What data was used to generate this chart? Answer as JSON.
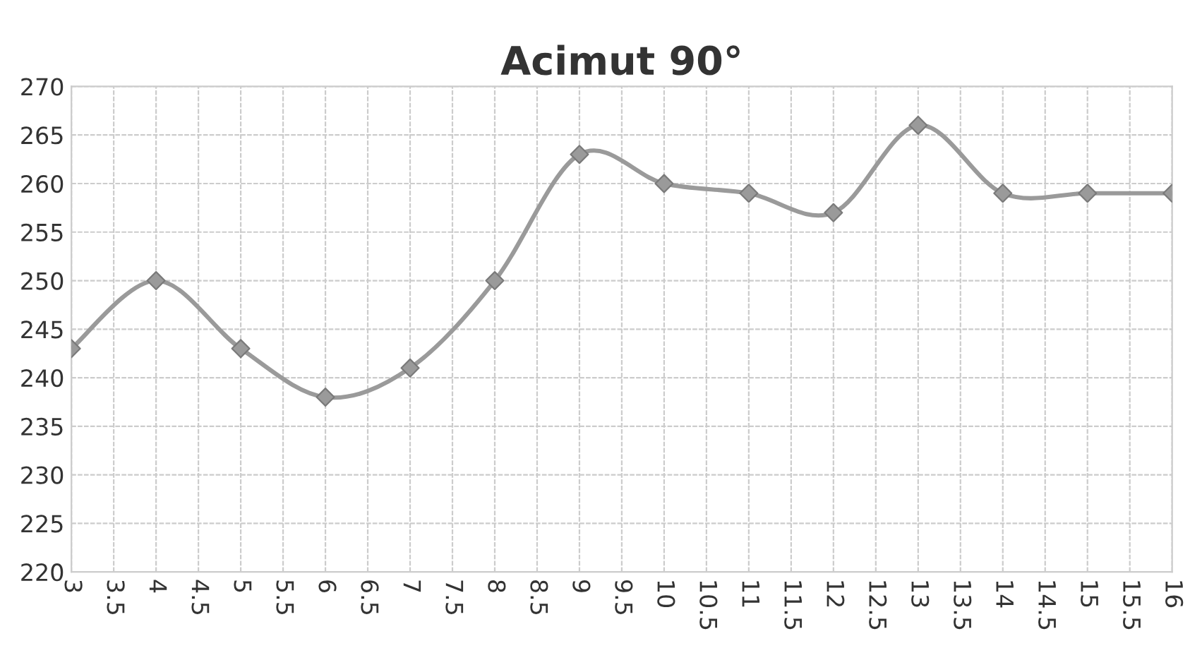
{
  "chart_data": {
    "type": "line",
    "title": "Acimut 90°",
    "x": [
      3,
      4,
      5,
      6,
      7,
      8,
      9,
      10,
      11,
      12,
      13,
      14,
      15,
      16
    ],
    "series": [
      {
        "color": "#9a9a9a",
        "values": [
          243,
          250,
          243,
          238,
          241,
          250,
          263,
          260,
          259,
          257,
          266,
          259,
          259,
          259
        ]
      }
    ],
    "xlim": [
      3,
      16
    ],
    "xticks": [
      3,
      3.5,
      4,
      4.5,
      5,
      5.5,
      6,
      6.5,
      7,
      7.5,
      8,
      8.5,
      9,
      9.5,
      10,
      10.5,
      11,
      11.5,
      12,
      12.5,
      13,
      13.5,
      14,
      14.5,
      15,
      15.5,
      16
    ],
    "ylim": [
      220,
      270
    ],
    "yticks": [
      220,
      225,
      230,
      235,
      240,
      245,
      250,
      255,
      260,
      265,
      270
    ],
    "grid": true,
    "marker": "diamond",
    "line_style": "solid",
    "legend": false
  }
}
